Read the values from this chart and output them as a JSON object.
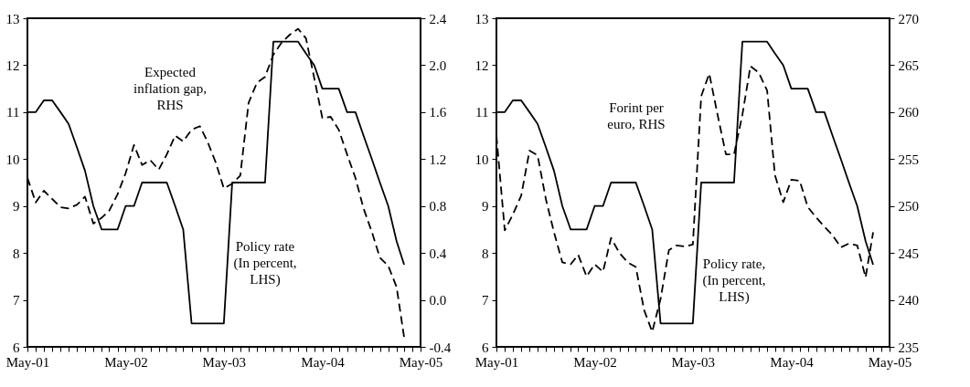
{
  "chart_data": [
    {
      "type": "line",
      "x": [
        "2001-05",
        "2001-06",
        "2001-07",
        "2001-08",
        "2001-09",
        "2001-10",
        "2001-11",
        "2001-12",
        "2002-01",
        "2002-02",
        "2002-03",
        "2002-04",
        "2002-05",
        "2002-06",
        "2002-07",
        "2002-08",
        "2002-09",
        "2002-10",
        "2002-11",
        "2002-12",
        "2003-01",
        "2003-02",
        "2003-03",
        "2003-04",
        "2003-05",
        "2003-06",
        "2003-07",
        "2003-08",
        "2003-09",
        "2003-10",
        "2003-11",
        "2003-12",
        "2004-01",
        "2004-02",
        "2004-03",
        "2004-04",
        "2004-05",
        "2004-06",
        "2004-07",
        "2004-08",
        "2004-09",
        "2004-10",
        "2004-11",
        "2004-12",
        "2005-01",
        "2005-02",
        "2005-03"
      ],
      "series": [
        {
          "name": "Policy rate (In percent, LHS)",
          "color": "#000000",
          "line_style": "solid",
          "axis": "y",
          "values": [
            11,
            11,
            11.25,
            11.25,
            11,
            10.75,
            10.25,
            9.75,
            9,
            8.5,
            8.5,
            8.5,
            9,
            9,
            9.5,
            9.5,
            9.5,
            9.5,
            9,
            8.5,
            6.5,
            6.5,
            6.5,
            6.5,
            6.5,
            9.5,
            9.5,
            9.5,
            9.5,
            9.5,
            12.5,
            12.5,
            12.5,
            12.5,
            12.25,
            12,
            11.5,
            11.5,
            11.5,
            11,
            11,
            10.5,
            10,
            9.5,
            9,
            8.25,
            7.75
          ]
        },
        {
          "name": "Expected inflation gap, RHS",
          "color": "#000000",
          "line_style": "dashed",
          "axis": "y2",
          "values": [
            1.04,
            0.83,
            0.93,
            0.86,
            0.79,
            0.78,
            0.81,
            0.88,
            0.65,
            0.7,
            0.76,
            0.9,
            1.08,
            1.32,
            1.15,
            1.19,
            1.11,
            1.24,
            1.4,
            1.35,
            1.45,
            1.48,
            1.35,
            1.17,
            0.95,
            0.99,
            1.06,
            1.68,
            1.85,
            1.9,
            2.09,
            2.19,
            2.26,
            2.31,
            2.23,
            1.89,
            1.55,
            1.56,
            1.45,
            1.24,
            1.04,
            0.78,
            0.58,
            0.36,
            0.29,
            0.11,
            -0.32
          ]
        }
      ],
      "ylim": [
        6,
        13
      ],
      "yticks": [
        6,
        7,
        8,
        9,
        10,
        11,
        12,
        13
      ],
      "y2lim": [
        -0.4,
        2.4
      ],
      "y2ticks": [
        {
          "value": -0.4,
          "label": "-0.4"
        },
        {
          "value": 0,
          "label": "0.0"
        },
        {
          "value": 0.4,
          "label": "0.4"
        },
        {
          "value": 0.8,
          "label": "0.8"
        },
        {
          "value": 1.2,
          "label": "1.2"
        },
        {
          "value": 1.6,
          "label": "1.6"
        },
        {
          "value": 2,
          "label": "2.0"
        },
        {
          "value": 2.4,
          "label": "2.4"
        }
      ],
      "xlim": [
        "2001-05",
        "2005-05"
      ],
      "xticks": [
        {
          "value": "2001-05",
          "label": "May-01"
        },
        {
          "value": "2001-06",
          "label": null
        },
        {
          "value": "2001-07",
          "label": null
        },
        {
          "value": "2001-08",
          "label": null
        },
        {
          "value": "2001-09",
          "label": null
        },
        {
          "value": "2001-10",
          "label": null
        },
        {
          "value": "2001-11",
          "label": null
        },
        {
          "value": "2001-12",
          "label": null
        },
        {
          "value": "2002-01",
          "label": null
        },
        {
          "value": "2002-02",
          "label": null
        },
        {
          "value": "2002-03",
          "label": null
        },
        {
          "value": "2002-04",
          "label": null
        },
        {
          "value": "2002-05",
          "label": "May-02"
        },
        {
          "value": "2002-06",
          "label": null
        },
        {
          "value": "2002-07",
          "label": null
        },
        {
          "value": "2002-08",
          "label": null
        },
        {
          "value": "2002-09",
          "label": null
        },
        {
          "value": "2002-10",
          "label": null
        },
        {
          "value": "2002-11",
          "label": null
        },
        {
          "value": "2002-12",
          "label": null
        },
        {
          "value": "2003-01",
          "label": null
        },
        {
          "value": "2003-02",
          "label": null
        },
        {
          "value": "2003-03",
          "label": null
        },
        {
          "value": "2003-04",
          "label": null
        },
        {
          "value": "2003-05",
          "label": "May-03"
        },
        {
          "value": "2003-06",
          "label": null
        },
        {
          "value": "2003-07",
          "label": null
        },
        {
          "value": "2003-08",
          "label": null
        },
        {
          "value": "2003-09",
          "label": null
        },
        {
          "value": "2003-10",
          "label": null
        },
        {
          "value": "2003-11",
          "label": null
        },
        {
          "value": "2003-12",
          "label": null
        },
        {
          "value": "2004-01",
          "label": null
        },
        {
          "value": "2004-02",
          "label": null
        },
        {
          "value": "2004-03",
          "label": null
        },
        {
          "value": "2004-04",
          "label": null
        },
        {
          "value": "2004-05",
          "label": "May-04"
        },
        {
          "value": "2004-06",
          "label": null
        },
        {
          "value": "2004-07",
          "label": null
        },
        {
          "value": "2004-08",
          "label": null
        },
        {
          "value": "2004-09",
          "label": null
        },
        {
          "value": "2004-10",
          "label": null
        },
        {
          "value": "2004-11",
          "label": null
        },
        {
          "value": "2004-12",
          "label": null
        },
        {
          "value": "2005-01",
          "label": null
        },
        {
          "value": "2005-02",
          "label": null
        },
        {
          "value": "2005-03",
          "label": null
        },
        {
          "value": "2005-04",
          "label": null
        },
        {
          "value": "2005-05",
          "label": "May-05"
        }
      ],
      "grid": false,
      "legend": false,
      "marker": "none"
    },
    {
      "type": "line",
      "x": [
        "2001-05",
        "2001-06",
        "2001-07",
        "2001-08",
        "2001-09",
        "2001-10",
        "2001-11",
        "2001-12",
        "2002-01",
        "2002-02",
        "2002-03",
        "2002-04",
        "2002-05",
        "2002-06",
        "2002-07",
        "2002-08",
        "2002-09",
        "2002-10",
        "2002-11",
        "2002-12",
        "2003-01",
        "2003-02",
        "2003-03",
        "2003-04",
        "2003-05",
        "2003-06",
        "2003-07",
        "2003-08",
        "2003-09",
        "2003-10",
        "2003-11",
        "2003-12",
        "2004-01",
        "2004-02",
        "2004-03",
        "2004-04",
        "2004-05",
        "2004-06",
        "2004-07",
        "2004-08",
        "2004-09",
        "2004-10",
        "2004-11",
        "2004-12",
        "2005-01",
        "2005-02",
        "2005-03"
      ],
      "series": [
        {
          "name": "Policy rate, (In percent, LHS)",
          "color": "#000000",
          "line_style": "solid",
          "axis": "y",
          "values": [
            11,
            11,
            11.25,
            11.25,
            11,
            10.75,
            10.25,
            9.75,
            9,
            8.5,
            8.5,
            8.5,
            9,
            9,
            9.5,
            9.5,
            9.5,
            9.5,
            9,
            8.5,
            6.5,
            6.5,
            6.5,
            6.5,
            6.5,
            9.5,
            9.5,
            9.5,
            9.5,
            9.5,
            12.5,
            12.5,
            12.5,
            12.5,
            12.25,
            12,
            11.5,
            11.5,
            11.5,
            11,
            11,
            10.5,
            10,
            9.5,
            9,
            8.25,
            7.75
          ]
        },
        {
          "name": "Forint per euro, RHS",
          "color": "#000000",
          "line_style": "dashed",
          "axis": "y2",
          "values": [
            257.5,
            247.4,
            249.1,
            251.1,
            255.9,
            255.4,
            250.7,
            247.2,
            244.0,
            243.8,
            244.8,
            242.5,
            243.8,
            243.0,
            246.6,
            245.0,
            244.0,
            243.5,
            238.9,
            236.6,
            240.1,
            245.3,
            245.8,
            245.7,
            245.9,
            261.7,
            264.1,
            259.7,
            255.5,
            255.5,
            259.7,
            264.9,
            264.2,
            262.3,
            253.3,
            250.4,
            252.8,
            252.7,
            249.9,
            248.8,
            247.8,
            246.9,
            245.6,
            246.0,
            245.8,
            242.4,
            247.2
          ]
        }
      ],
      "ylim": [
        6,
        13
      ],
      "yticks": [
        6,
        7,
        8,
        9,
        10,
        11,
        12,
        13
      ],
      "y2lim": [
        235,
        270
      ],
      "y2ticks": [
        235,
        240,
        245,
        250,
        255,
        260,
        265,
        270
      ],
      "xlim": [
        "2001-05",
        "2005-05"
      ],
      "xticks": [
        {
          "value": "2001-05",
          "label": "May-01"
        },
        {
          "value": "2001-06",
          "label": null
        },
        {
          "value": "2001-07",
          "label": null
        },
        {
          "value": "2001-08",
          "label": null
        },
        {
          "value": "2001-09",
          "label": null
        },
        {
          "value": "2001-10",
          "label": null
        },
        {
          "value": "2001-11",
          "label": null
        },
        {
          "value": "2001-12",
          "label": null
        },
        {
          "value": "2002-01",
          "label": null
        },
        {
          "value": "2002-02",
          "label": null
        },
        {
          "value": "2002-03",
          "label": null
        },
        {
          "value": "2002-04",
          "label": null
        },
        {
          "value": "2002-05",
          "label": "May-02"
        },
        {
          "value": "2002-06",
          "label": null
        },
        {
          "value": "2002-07",
          "label": null
        },
        {
          "value": "2002-08",
          "label": null
        },
        {
          "value": "2002-09",
          "label": null
        },
        {
          "value": "2002-10",
          "label": null
        },
        {
          "value": "2002-11",
          "label": null
        },
        {
          "value": "2002-12",
          "label": null
        },
        {
          "value": "2003-01",
          "label": null
        },
        {
          "value": "2003-02",
          "label": null
        },
        {
          "value": "2003-03",
          "label": null
        },
        {
          "value": "2003-04",
          "label": null
        },
        {
          "value": "2003-05",
          "label": "May-03"
        },
        {
          "value": "2003-06",
          "label": null
        },
        {
          "value": "2003-07",
          "label": null
        },
        {
          "value": "2003-08",
          "label": null
        },
        {
          "value": "2003-09",
          "label": null
        },
        {
          "value": "2003-10",
          "label": null
        },
        {
          "value": "2003-11",
          "label": null
        },
        {
          "value": "2003-12",
          "label": null
        },
        {
          "value": "2004-01",
          "label": null
        },
        {
          "value": "2004-02",
          "label": null
        },
        {
          "value": "2004-03",
          "label": null
        },
        {
          "value": "2004-04",
          "label": null
        },
        {
          "value": "2004-05",
          "label": "May-04"
        },
        {
          "value": "2004-06",
          "label": null
        },
        {
          "value": "2004-07",
          "label": null
        },
        {
          "value": "2004-08",
          "label": null
        },
        {
          "value": "2004-09",
          "label": null
        },
        {
          "value": "2004-10",
          "label": null
        },
        {
          "value": "2004-11",
          "label": null
        },
        {
          "value": "2004-12",
          "label": null
        },
        {
          "value": "2005-01",
          "label": null
        },
        {
          "value": "2005-02",
          "label": null
        },
        {
          "value": "2005-03",
          "label": null
        },
        {
          "value": "2005-04",
          "label": null
        },
        {
          "value": "2005-05",
          "label": "May-05"
        }
      ],
      "grid": false,
      "legend": false,
      "marker": "none"
    }
  ]
}
